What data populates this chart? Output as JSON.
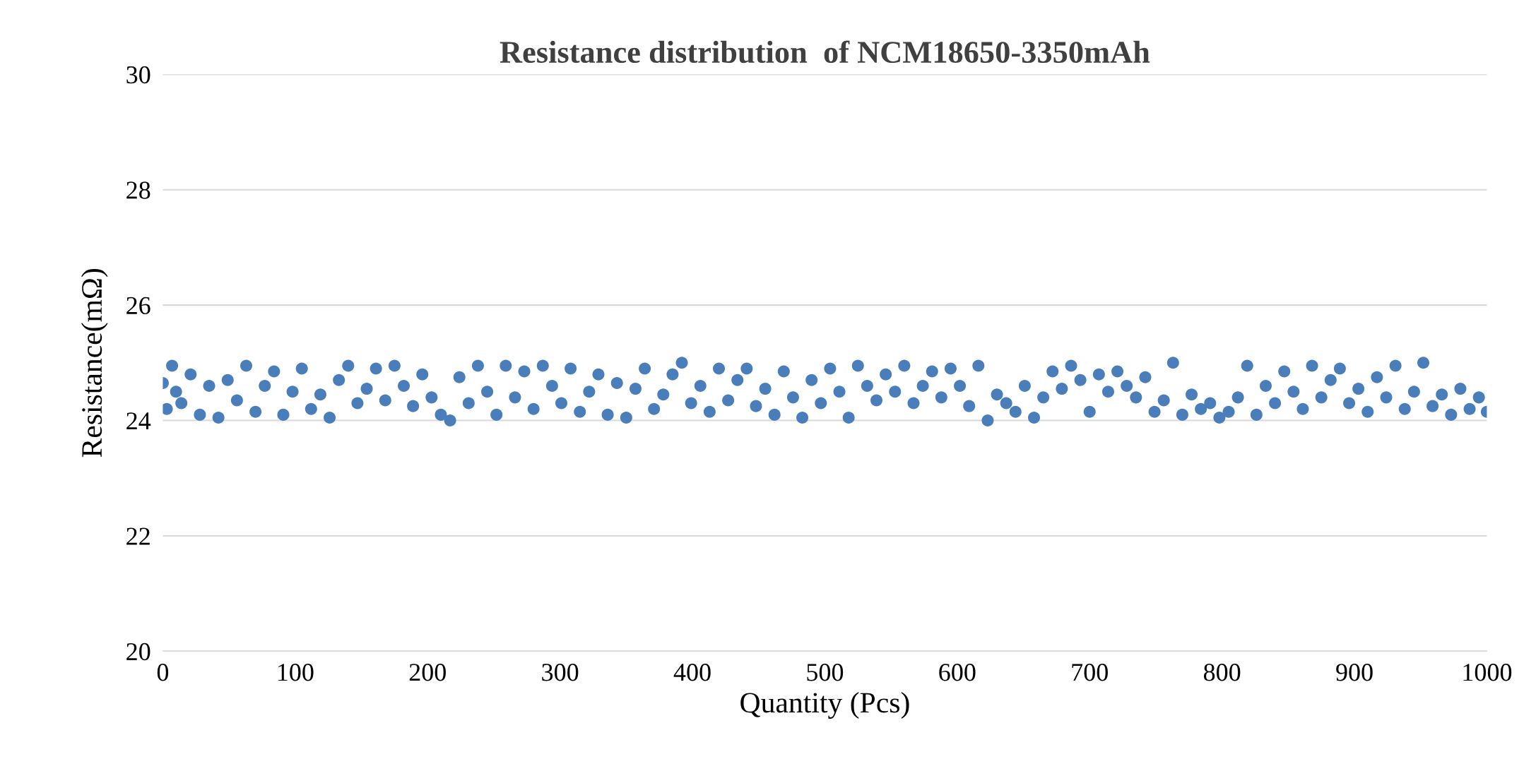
{
  "chart_data": {
    "type": "scatter",
    "title": "Resistance distribution  of NCM18650-3350mAh",
    "xlabel": "Quantity (Pcs)",
    "ylabel": "Resistance(mΩ)",
    "x": [
      0,
      3,
      7,
      10,
      14,
      21,
      28,
      35,
      42,
      49,
      56,
      63,
      70,
      77,
      84,
      91,
      98,
      105,
      112,
      119,
      126,
      133,
      140,
      147,
      154,
      161,
      168,
      175,
      182,
      189,
      196,
      203,
      210,
      217,
      224,
      231,
      238,
      245,
      252,
      259,
      266,
      273,
      280,
      287,
      294,
      301,
      308,
      315,
      322,
      329,
      336,
      343,
      350,
      357,
      364,
      371,
      378,
      385,
      392,
      399,
      406,
      413,
      420,
      427,
      434,
      441,
      448,
      455,
      462,
      469,
      476,
      483,
      490,
      497,
      504,
      511,
      518,
      525,
      532,
      539,
      546,
      553,
      560,
      567,
      574,
      581,
      588,
      595,
      602,
      609,
      616,
      623,
      630,
      637,
      644,
      651,
      658,
      665,
      672,
      679,
      686,
      693,
      700,
      707,
      714,
      721,
      728,
      735,
      742,
      749,
      756,
      763,
      770,
      777,
      784,
      791,
      798,
      805,
      812,
      819,
      826,
      833,
      840,
      847,
      854,
      861,
      868,
      875,
      882,
      889,
      896,
      903,
      910,
      917,
      924,
      931,
      938,
      945,
      952,
      959,
      966,
      973,
      980,
      987,
      994,
      1000
    ],
    "values": [
      24.65,
      24.2,
      24.95,
      24.5,
      24.3,
      24.8,
      24.1,
      24.6,
      24.05,
      24.7,
      24.35,
      24.95,
      24.15,
      24.6,
      24.85,
      24.1,
      24.5,
      24.9,
      24.2,
      24.45,
      24.05,
      24.7,
      24.95,
      24.3,
      24.55,
      24.9,
      24.35,
      24.95,
      24.6,
      24.25,
      24.8,
      24.4,
      24.1,
      24.0,
      24.75,
      24.3,
      24.95,
      24.5,
      24.1,
      24.95,
      24.4,
      24.85,
      24.2,
      24.95,
      24.6,
      24.3,
      24.9,
      24.15,
      24.5,
      24.8,
      24.1,
      24.65,
      24.05,
      24.55,
      24.9,
      24.2,
      24.45,
      24.8,
      25.0,
      24.3,
      24.6,
      24.15,
      24.9,
      24.35,
      24.7,
      24.9,
      24.25,
      24.55,
      24.1,
      24.85,
      24.4,
      24.05,
      24.7,
      24.3,
      24.9,
      24.5,
      24.05,
      24.95,
      24.6,
      24.35,
      24.8,
      24.5,
      24.95,
      24.3,
      24.6,
      24.85,
      24.4,
      24.9,
      24.6,
      24.25,
      24.95,
      24.0,
      24.45,
      24.3,
      24.15,
      24.6,
      24.05,
      24.4,
      24.85,
      24.55,
      24.95,
      24.7,
      24.15,
      24.8,
      24.5,
      24.85,
      24.6,
      24.4,
      24.75,
      24.15,
      24.35,
      25.0,
      24.1,
      24.45,
      24.2,
      24.3,
      24.05,
      24.15,
      24.4,
      24.95,
      24.1,
      24.6,
      24.3,
      24.85,
      24.5,
      24.2,
      24.95,
      24.4,
      24.7,
      24.9,
      24.3,
      24.55,
      24.15,
      24.75,
      24.4,
      24.95,
      24.2,
      24.5,
      25.0,
      24.25,
      24.45,
      24.1,
      24.55,
      24.2,
      24.4,
      24.15
    ],
    "color": "#4a7ebb",
    "marker": "circle",
    "xlim": [
      0,
      1000
    ],
    "xticks": [
      0,
      100,
      200,
      300,
      400,
      500,
      600,
      700,
      800,
      900,
      1000
    ],
    "ylim": [
      20,
      30
    ],
    "yticks": [
      20,
      22,
      24,
      26,
      28,
      30
    ],
    "grid": "y"
  }
}
